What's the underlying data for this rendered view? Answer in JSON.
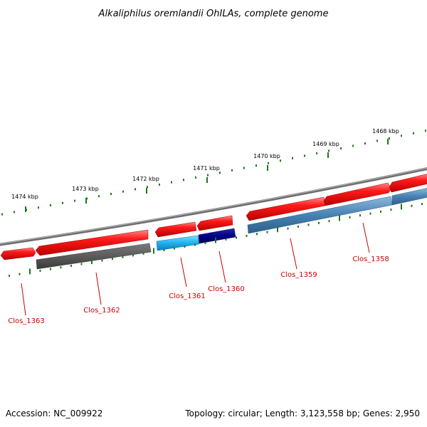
{
  "title": "Alkaliphilus oremlandii OhILAs, complete genome",
  "footer": {
    "accession": "Accession: NC_009922",
    "summary": "Topology: circular; Length: 3,123,558 bp; Genes: 2,950"
  },
  "ruler": {
    "labels": [
      "1474 kbp",
      "1473 kbp",
      "1472 kbp",
      "1471 kbp",
      "1470 kbp",
      "1469 kbp",
      "1468 kbp"
    ]
  },
  "genes": [
    {
      "id": "Clos_1363",
      "color": "#ff0000"
    },
    {
      "id": "Clos_1362",
      "color": "#555555"
    },
    {
      "id": "Clos_1361",
      "color": "#1fb0ee"
    },
    {
      "id": "Clos_1360",
      "color": "#000088"
    },
    {
      "id": "Clos_1359",
      "color": "#4682b4"
    },
    {
      "id": "Clos_1358",
      "color": "#4682b4"
    }
  ],
  "colors": {
    "forward_strand": "#ff0000",
    "backbone": "#808080",
    "tick": "#1a7a1a",
    "label": "#cc0000"
  }
}
